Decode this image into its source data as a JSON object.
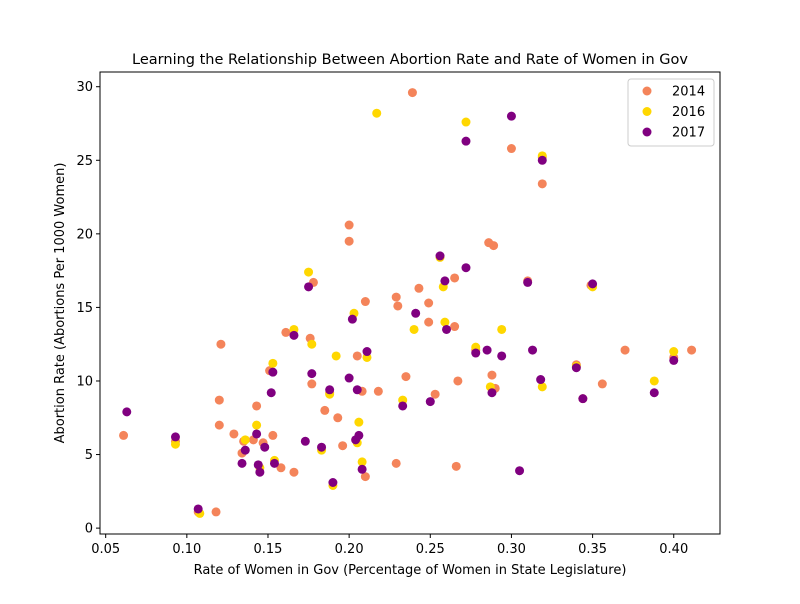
{
  "chart_data": {
    "type": "scatter",
    "title": "Learning the Relationship Between Abortion Rate and Rate of Women in Gov",
    "xlabel": "Rate of Women in Gov (Percentage of Women in State Legislature)",
    "ylabel": "Abortion Rate (Abortions Per 1000 Women)",
    "xlim": [
      0.0465,
      0.4285
    ],
    "ylim": [
      -0.4,
      31.0
    ],
    "xticks": [
      "0.05",
      "0.10",
      "0.15",
      "0.20",
      "0.25",
      "0.30",
      "0.35",
      "0.40"
    ],
    "xtick_values": [
      0.05,
      0.1,
      0.15,
      0.2,
      0.25,
      0.3,
      0.35,
      0.4
    ],
    "yticks": [
      "0",
      "5",
      "10",
      "15",
      "20",
      "25",
      "30"
    ],
    "ytick_values": [
      0,
      5,
      10,
      15,
      20,
      25,
      30
    ],
    "grid": false,
    "legend_position": "top-right",
    "series": [
      {
        "name": "2014",
        "color": "#F4845A",
        "points": [
          [
            0.061,
            6.3
          ],
          [
            0.093,
            5.9
          ],
          [
            0.107,
            1.1
          ],
          [
            0.118,
            1.1
          ],
          [
            0.12,
            8.7
          ],
          [
            0.12,
            7.0
          ],
          [
            0.121,
            12.5
          ],
          [
            0.129,
            6.4
          ],
          [
            0.134,
            5.1
          ],
          [
            0.135,
            5.9
          ],
          [
            0.141,
            6.0
          ],
          [
            0.143,
            8.3
          ],
          [
            0.147,
            5.8
          ],
          [
            0.151,
            10.7
          ],
          [
            0.153,
            6.3
          ],
          [
            0.158,
            4.1
          ],
          [
            0.161,
            13.3
          ],
          [
            0.166,
            3.8
          ],
          [
            0.176,
            12.9
          ],
          [
            0.177,
            9.8
          ],
          [
            0.178,
            16.7
          ],
          [
            0.185,
            8.0
          ],
          [
            0.188,
            9.2
          ],
          [
            0.193,
            7.5
          ],
          [
            0.196,
            5.6
          ],
          [
            0.2,
            20.6
          ],
          [
            0.2,
            19.5
          ],
          [
            0.205,
            11.7
          ],
          [
            0.208,
            9.3
          ],
          [
            0.21,
            15.4
          ],
          [
            0.21,
            3.5
          ],
          [
            0.218,
            9.3
          ],
          [
            0.229,
            15.7
          ],
          [
            0.229,
            4.4
          ],
          [
            0.23,
            15.1
          ],
          [
            0.235,
            10.3
          ],
          [
            0.239,
            29.6
          ],
          [
            0.243,
            16.3
          ],
          [
            0.249,
            15.3
          ],
          [
            0.249,
            14.0
          ],
          [
            0.253,
            9.1
          ],
          [
            0.265,
            13.7
          ],
          [
            0.265,
            17.0
          ],
          [
            0.266,
            4.2
          ],
          [
            0.267,
            10.0
          ],
          [
            0.278,
            12.1
          ],
          [
            0.286,
            19.4
          ],
          [
            0.288,
            10.4
          ],
          [
            0.289,
            19.2
          ],
          [
            0.29,
            9.5
          ],
          [
            0.3,
            25.8
          ],
          [
            0.31,
            16.8
          ],
          [
            0.319,
            23.4
          ],
          [
            0.319,
            25.2
          ],
          [
            0.34,
            11.1
          ],
          [
            0.344,
            8.8
          ],
          [
            0.349,
            16.5
          ],
          [
            0.356,
            9.8
          ],
          [
            0.37,
            12.1
          ],
          [
            0.4,
            11.6
          ],
          [
            0.411,
            12.1
          ]
        ]
      },
      {
        "name": "2016",
        "color": "#FFD700",
        "points": [
          [
            0.093,
            5.7
          ],
          [
            0.108,
            1.0
          ],
          [
            0.136,
            6.0
          ],
          [
            0.143,
            7.0
          ],
          [
            0.145,
            4.1
          ],
          [
            0.153,
            11.2
          ],
          [
            0.154,
            4.6
          ],
          [
            0.166,
            13.5
          ],
          [
            0.175,
            17.4
          ],
          [
            0.177,
            12.5
          ],
          [
            0.183,
            5.3
          ],
          [
            0.188,
            9.1
          ],
          [
            0.19,
            2.9
          ],
          [
            0.192,
            11.7
          ],
          [
            0.203,
            14.6
          ],
          [
            0.205,
            5.8
          ],
          [
            0.206,
            7.2
          ],
          [
            0.208,
            4.5
          ],
          [
            0.211,
            11.6
          ],
          [
            0.217,
            28.2
          ],
          [
            0.233,
            8.7
          ],
          [
            0.24,
            13.5
          ],
          [
            0.256,
            18.4
          ],
          [
            0.258,
            16.4
          ],
          [
            0.259,
            14.0
          ],
          [
            0.272,
            27.6
          ],
          [
            0.278,
            12.3
          ],
          [
            0.287,
            9.6
          ],
          [
            0.294,
            13.5
          ],
          [
            0.319,
            9.6
          ],
          [
            0.319,
            25.3
          ],
          [
            0.34,
            11.0
          ],
          [
            0.35,
            16.4
          ],
          [
            0.388,
            10.0
          ],
          [
            0.4,
            12.0
          ]
        ]
      },
      {
        "name": "2017",
        "color": "#800080",
        "points": [
          [
            0.063,
            7.9
          ],
          [
            0.093,
            6.2
          ],
          [
            0.107,
            1.3
          ],
          [
            0.134,
            4.4
          ],
          [
            0.136,
            5.3
          ],
          [
            0.143,
            6.4
          ],
          [
            0.144,
            4.3
          ],
          [
            0.145,
            3.8
          ],
          [
            0.148,
            5.5
          ],
          [
            0.152,
            9.2
          ],
          [
            0.153,
            10.6
          ],
          [
            0.154,
            4.4
          ],
          [
            0.166,
            13.1
          ],
          [
            0.173,
            5.9
          ],
          [
            0.175,
            16.4
          ],
          [
            0.177,
            10.5
          ],
          [
            0.183,
            5.5
          ],
          [
            0.188,
            9.4
          ],
          [
            0.19,
            3.1
          ],
          [
            0.2,
            10.2
          ],
          [
            0.202,
            14.2
          ],
          [
            0.204,
            6.0
          ],
          [
            0.205,
            9.4
          ],
          [
            0.206,
            6.3
          ],
          [
            0.208,
            4.0
          ],
          [
            0.211,
            12.0
          ],
          [
            0.233,
            8.3
          ],
          [
            0.241,
            14.6
          ],
          [
            0.25,
            8.6
          ],
          [
            0.256,
            18.5
          ],
          [
            0.259,
            16.8
          ],
          [
            0.26,
            13.5
          ],
          [
            0.272,
            26.3
          ],
          [
            0.272,
            17.7
          ],
          [
            0.278,
            11.9
          ],
          [
            0.285,
            12.1
          ],
          [
            0.288,
            9.2
          ],
          [
            0.294,
            11.7
          ],
          [
            0.3,
            28.0
          ],
          [
            0.305,
            3.9
          ],
          [
            0.31,
            16.7
          ],
          [
            0.313,
            12.1
          ],
          [
            0.318,
            10.1
          ],
          [
            0.319,
            25.0
          ],
          [
            0.34,
            10.9
          ],
          [
            0.344,
            8.8
          ],
          [
            0.35,
            16.6
          ],
          [
            0.388,
            9.2
          ],
          [
            0.4,
            11.4
          ]
        ]
      }
    ]
  }
}
